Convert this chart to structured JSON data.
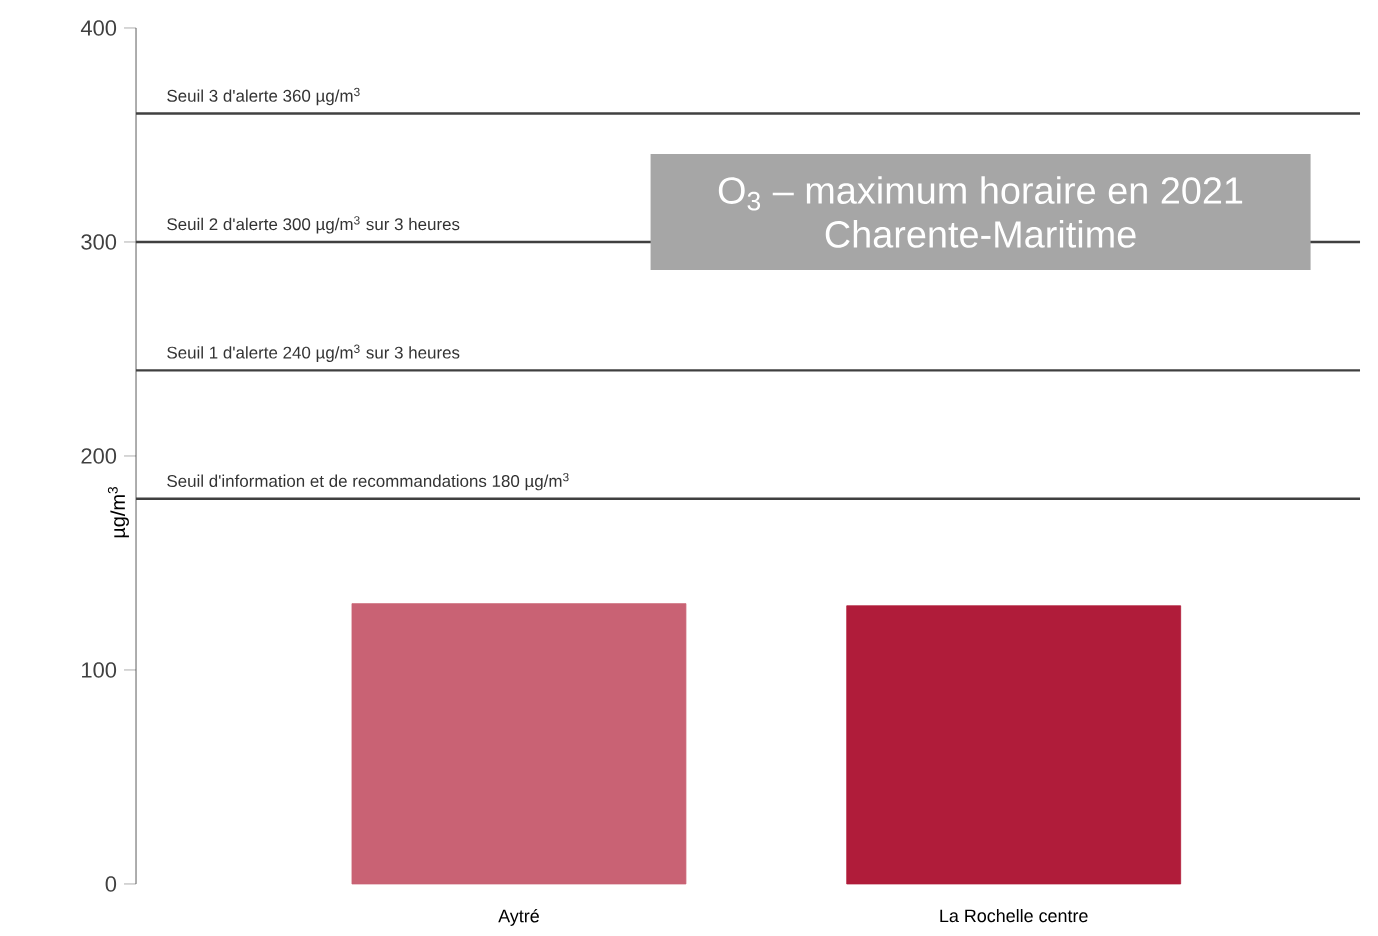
{
  "chart_data": {
    "type": "bar",
    "title": "O$_{3}$ – maximum horaire en 2021",
    "subtitle": "Charente-Maritime",
    "ylabel": "µg/m$^{3}$",
    "categories": [
      "Aytré",
      "La Rochelle centre"
    ],
    "values": [
      131,
      130
    ],
    "colors": [
      "#c96274",
      "#b01c3a"
    ],
    "ylim": [
      0,
      400
    ],
    "yticks": [
      0,
      100,
      200,
      300,
      400
    ],
    "ref_lines": [
      {
        "axis": "y",
        "value": 360,
        "label": "Seuil 3 d'alerte 360 µg/m$^{3}$",
        "color": "#404040"
      },
      {
        "axis": "y",
        "value": 300,
        "label": "Seuil 2 d'alerte 300 µg/m$^{3}$ sur 3 heures",
        "color": "#404040"
      },
      {
        "axis": "y",
        "value": 240,
        "label": "Seuil 1 d'alerte 240 µg/m$^{3}$ sur 3 heures",
        "color": "#404040"
      },
      {
        "axis": "y",
        "value": 180,
        "label": "Seuil d'information et de recommandations 180 µg/m$^{3}$",
        "color": "#404040"
      }
    ]
  }
}
